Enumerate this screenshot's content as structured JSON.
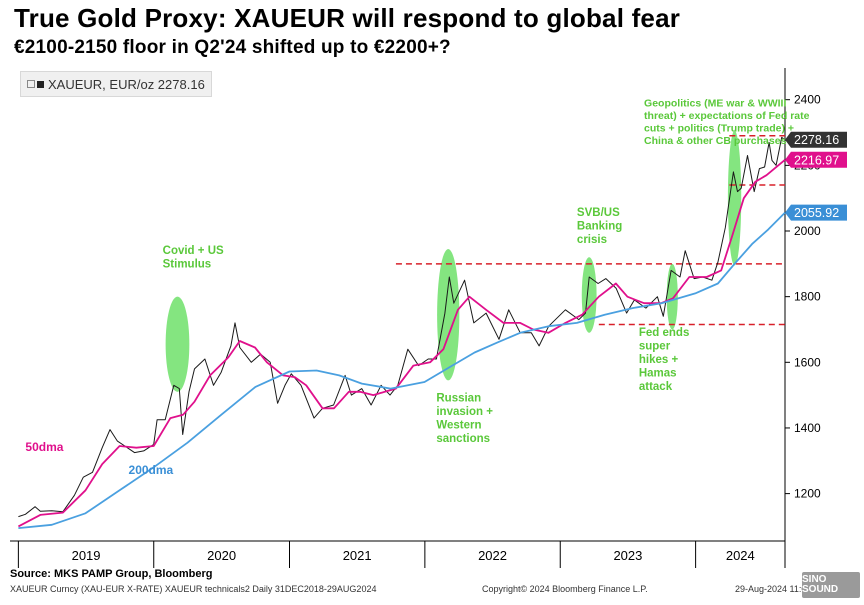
{
  "title": "True Gold Proxy: XAUEUR will respond to global fear",
  "subtitle": "€2100-2150 floor in Q2'24 shifted up to €2200+?",
  "legend": "XAUEUR, EUR/oz 2278.16",
  "source": "Source: MKS PAMP Group, Bloomberg",
  "footer": {
    "left": "XAUEUR Curncy (XAU-EUR X-RATE) XAUEUR technicals2  Daily 31DEC2018-29AUG2024",
    "center": "Copyright© 2024 Bloomberg Finance L.P.",
    "right": "29-Aug-2024 11:01:13"
  },
  "watermark": "SINO SOUND",
  "colors": {
    "price": "#1a1a1a",
    "ma50": "#e0108c",
    "ma200": "#4aa0e0",
    "ma50_label": "#e0108c",
    "ma200_label": "#3a8fd6",
    "annotation": "#5ac83a",
    "ellipse": "#6ee06a",
    "dashed": "#d8202a",
    "tag_price": "#333333",
    "tag_ma50": "#e0108c",
    "tag_ma200": "#3a8fd6"
  },
  "chart_data": {
    "type": "line",
    "x_type": "date",
    "x_range": [
      "2018-12-31",
      "2024-08-29"
    ],
    "ylim": [
      1080,
      2460
    ],
    "yticks": [
      1200,
      1400,
      1600,
      1800,
      2000,
      2200,
      2400
    ],
    "xlabels": [
      "2019",
      "2020",
      "2021",
      "2022",
      "2023",
      "2024"
    ],
    "grid": false,
    "series": [
      {
        "key": "price",
        "name": "XAUEUR",
        "points": [
          [
            "2019-01-01",
            1130
          ],
          [
            "2019-01-20",
            1137
          ],
          [
            "2019-02-15",
            1160
          ],
          [
            "2019-03-01",
            1146
          ],
          [
            "2019-04-01",
            1148
          ],
          [
            "2019-05-01",
            1145
          ],
          [
            "2019-06-01",
            1195
          ],
          [
            "2019-06-25",
            1250
          ],
          [
            "2019-07-20",
            1265
          ],
          [
            "2019-08-15",
            1340
          ],
          [
            "2019-09-05",
            1395
          ],
          [
            "2019-09-25",
            1360
          ],
          [
            "2019-10-15",
            1345
          ],
          [
            "2019-11-10",
            1325
          ],
          [
            "2019-12-05",
            1330
          ],
          [
            "2020-01-01",
            1350
          ],
          [
            "2020-01-10",
            1425
          ],
          [
            "2020-02-01",
            1425
          ],
          [
            "2020-02-24",
            1530
          ],
          [
            "2020-03-10",
            1520
          ],
          [
            "2020-03-19",
            1380
          ],
          [
            "2020-04-05",
            1510
          ],
          [
            "2020-04-20",
            1580
          ],
          [
            "2020-05-18",
            1610
          ],
          [
            "2020-06-10",
            1530
          ],
          [
            "2020-07-01",
            1570
          ],
          [
            "2020-07-27",
            1650
          ],
          [
            "2020-08-07",
            1720
          ],
          [
            "2020-08-20",
            1645
          ],
          [
            "2020-09-20",
            1600
          ],
          [
            "2020-10-15",
            1625
          ],
          [
            "2020-11-10",
            1600
          ],
          [
            "2020-11-30",
            1475
          ],
          [
            "2020-12-20",
            1530
          ],
          [
            "2021-01-06",
            1565
          ],
          [
            "2021-02-01",
            1530
          ],
          [
            "2021-03-08",
            1430
          ],
          [
            "2021-03-31",
            1460
          ],
          [
            "2021-04-30",
            1470
          ],
          [
            "2021-05-31",
            1560
          ],
          [
            "2021-06-17",
            1500
          ],
          [
            "2021-07-15",
            1520
          ],
          [
            "2021-08-09",
            1470
          ],
          [
            "2021-09-05",
            1530
          ],
          [
            "2021-09-29",
            1500
          ],
          [
            "2021-10-20",
            1530
          ],
          [
            "2021-11-16",
            1640
          ],
          [
            "2021-12-15",
            1590
          ],
          [
            "2022-01-10",
            1610
          ],
          [
            "2022-02-01",
            1610
          ],
          [
            "2022-02-24",
            1750
          ],
          [
            "2022-03-08",
            1860
          ],
          [
            "2022-03-20",
            1780
          ],
          [
            "2022-04-18",
            1850
          ],
          [
            "2022-05-13",
            1720
          ],
          [
            "2022-06-15",
            1750
          ],
          [
            "2022-07-20",
            1670
          ],
          [
            "2022-08-15",
            1760
          ],
          [
            "2022-09-15",
            1690
          ],
          [
            "2022-10-15",
            1690
          ],
          [
            "2022-11-05",
            1650
          ],
          [
            "2022-12-01",
            1710
          ],
          [
            "2023-01-15",
            1760
          ],
          [
            "2023-02-20",
            1730
          ],
          [
            "2023-03-10",
            1750
          ],
          [
            "2023-03-20",
            1860
          ],
          [
            "2023-04-13",
            1840
          ],
          [
            "2023-05-04",
            1855
          ],
          [
            "2023-06-01",
            1825
          ],
          [
            "2023-06-29",
            1750
          ],
          [
            "2023-07-20",
            1790
          ],
          [
            "2023-08-20",
            1765
          ],
          [
            "2023-09-20",
            1800
          ],
          [
            "2023-10-06",
            1740
          ],
          [
            "2023-10-27",
            1880
          ],
          [
            "2023-11-20",
            1860
          ],
          [
            "2023-12-04",
            1940
          ],
          [
            "2023-12-28",
            1855
          ],
          [
            "2024-01-20",
            1860
          ],
          [
            "2024-02-14",
            1850
          ],
          [
            "2024-03-01",
            1905
          ],
          [
            "2024-03-21",
            2010
          ],
          [
            "2024-04-12",
            2180
          ],
          [
            "2024-04-23",
            2120
          ],
          [
            "2024-05-03",
            2130
          ],
          [
            "2024-05-20",
            2230
          ],
          [
            "2024-06-07",
            2120
          ],
          [
            "2024-06-21",
            2190
          ],
          [
            "2024-07-05",
            2195
          ],
          [
            "2024-07-17",
            2270
          ],
          [
            "2024-07-25",
            2215
          ],
          [
            "2024-08-05",
            2200
          ],
          [
            "2024-08-20",
            2285
          ],
          [
            "2024-08-29",
            2278.16
          ]
        ]
      },
      {
        "key": "ma50",
        "name": "50dma",
        "points": [
          [
            "2019-01-01",
            1100
          ],
          [
            "2019-03-01",
            1135
          ],
          [
            "2019-05-01",
            1142
          ],
          [
            "2019-07-01",
            1210
          ],
          [
            "2019-08-15",
            1290
          ],
          [
            "2019-10-01",
            1345
          ],
          [
            "2019-11-15",
            1340
          ],
          [
            "2020-01-01",
            1345
          ],
          [
            "2020-02-15",
            1430
          ],
          [
            "2020-03-20",
            1440
          ],
          [
            "2020-04-20",
            1480
          ],
          [
            "2020-06-01",
            1560
          ],
          [
            "2020-07-20",
            1615
          ],
          [
            "2020-08-20",
            1665
          ],
          [
            "2020-09-30",
            1645
          ],
          [
            "2020-11-01",
            1600
          ],
          [
            "2020-12-15",
            1560
          ],
          [
            "2021-01-15",
            1555
          ],
          [
            "2021-02-15",
            1530
          ],
          [
            "2021-03-31",
            1460
          ],
          [
            "2021-05-01",
            1460
          ],
          [
            "2021-06-10",
            1510
          ],
          [
            "2021-07-10",
            1510
          ],
          [
            "2021-08-15",
            1500
          ],
          [
            "2021-09-15",
            1510
          ],
          [
            "2021-10-15",
            1520
          ],
          [
            "2021-12-01",
            1590
          ],
          [
            "2022-01-15",
            1600
          ],
          [
            "2022-02-20",
            1640
          ],
          [
            "2022-03-31",
            1760
          ],
          [
            "2022-05-01",
            1800
          ],
          [
            "2022-06-15",
            1760
          ],
          [
            "2022-08-01",
            1720
          ],
          [
            "2022-09-15",
            1720
          ],
          [
            "2022-10-20",
            1700
          ],
          [
            "2022-11-30",
            1690
          ],
          [
            "2023-01-15",
            1720
          ],
          [
            "2023-03-01",
            1745
          ],
          [
            "2023-04-15",
            1800
          ],
          [
            "2023-05-31",
            1840
          ],
          [
            "2023-07-01",
            1800
          ],
          [
            "2023-08-15",
            1780
          ],
          [
            "2023-09-30",
            1780
          ],
          [
            "2023-11-01",
            1795
          ],
          [
            "2023-12-15",
            1860
          ],
          [
            "2024-01-31",
            1860
          ],
          [
            "2024-03-10",
            1880
          ],
          [
            "2024-04-10",
            1990
          ],
          [
            "2024-05-10",
            2100
          ],
          [
            "2024-06-10",
            2150
          ],
          [
            "2024-07-10",
            2170
          ],
          [
            "2024-08-29",
            2216.97
          ]
        ]
      },
      {
        "key": "ma200",
        "name": "200dma",
        "points": [
          [
            "2019-01-01",
            1095
          ],
          [
            "2019-04-01",
            1105
          ],
          [
            "2019-07-01",
            1140
          ],
          [
            "2019-10-01",
            1210
          ],
          [
            "2020-01-01",
            1280
          ],
          [
            "2020-04-01",
            1355
          ],
          [
            "2020-07-01",
            1440
          ],
          [
            "2020-10-01",
            1525
          ],
          [
            "2021-01-01",
            1572
          ],
          [
            "2021-03-15",
            1575
          ],
          [
            "2021-05-15",
            1560
          ],
          [
            "2021-07-15",
            1535
          ],
          [
            "2021-10-01",
            1520
          ],
          [
            "2021-12-31",
            1540
          ],
          [
            "2022-03-01",
            1580
          ],
          [
            "2022-05-15",
            1630
          ],
          [
            "2022-07-15",
            1660
          ],
          [
            "2022-09-15",
            1690
          ],
          [
            "2022-12-01",
            1710
          ],
          [
            "2023-02-15",
            1720
          ],
          [
            "2023-05-01",
            1745
          ],
          [
            "2023-07-15",
            1765
          ],
          [
            "2023-10-01",
            1780
          ],
          [
            "2023-12-31",
            1810
          ],
          [
            "2024-03-01",
            1840
          ],
          [
            "2024-04-15",
            1900
          ],
          [
            "2024-06-01",
            1960
          ],
          [
            "2024-07-15",
            2005
          ],
          [
            "2024-08-29",
            2055.92
          ]
        ]
      }
    ],
    "value_tags": [
      {
        "key": "price",
        "value": 2278.16,
        "label": "2278.16"
      },
      {
        "key": "ma50",
        "value": 2216.97,
        "label": "2216.97"
      },
      {
        "key": "ma200",
        "value": 2055.92,
        "label": "2055.92"
      }
    ],
    "series_labels": [
      {
        "key": "ma50",
        "text": "50dma",
        "x": "2019-01-20",
        "y": 1330
      },
      {
        "key": "ma200",
        "text": "200dma",
        "x": "2019-10-25",
        "y": 1260
      }
    ],
    "reference_lines": [
      {
        "y": 1900,
        "x_start": "2021-10-15",
        "x_end": "2024-08-29"
      },
      {
        "y": 1715,
        "x_start": "2023-04-15",
        "x_end": "2024-08-29"
      },
      {
        "y": 2290,
        "x_start": "2024-04-01",
        "x_end": "2024-08-29"
      },
      {
        "y": 2140,
        "x_start": "2024-04-01",
        "x_end": "2024-08-29"
      }
    ],
    "highlights": [
      {
        "x_center": "2020-03-05",
        "x_radius_days": 32,
        "y_center": 1655,
        "y_radius": 145
      },
      {
        "x_center": "2022-03-05",
        "x_radius_days": 30,
        "y_center": 1745,
        "y_radius": 200
      },
      {
        "x_center": "2023-03-20",
        "x_radius_days": 20,
        "y_center": 1805,
        "y_radius": 115
      },
      {
        "x_center": "2023-10-30",
        "x_radius_days": 15,
        "y_center": 1800,
        "y_radius": 100
      },
      {
        "x_center": "2024-04-15",
        "x_radius_days": 18,
        "y_center": 2100,
        "y_radius": 205
      }
    ],
    "annotations": [
      {
        "lines": [
          "Covid + US",
          "Stimulus"
        ],
        "x": "2020-01-25",
        "y": 1930
      },
      {
        "lines": [
          "Russian",
          "invasion +",
          "Western",
          "sanctions"
        ],
        "x": "2022-02-01",
        "y": 1480
      },
      {
        "lines": [
          "SVB/US",
          "Banking",
          "crisis"
        ],
        "x": "2023-02-15",
        "y": 2045
      },
      {
        "lines": [
          "Fed ends",
          "super",
          "hikes +",
          "Hamas",
          "attack"
        ],
        "x": "2023-08-01",
        "y": 1680
      },
      {
        "lines": [
          "Geopolitics (ME war & WWIII",
          "threat) + expectations of Fed rate",
          "cuts + politics (Trump trade) +",
          "China & other CB purchases"
        ],
        "x": "2023-08-15",
        "y": 2380
      }
    ]
  }
}
